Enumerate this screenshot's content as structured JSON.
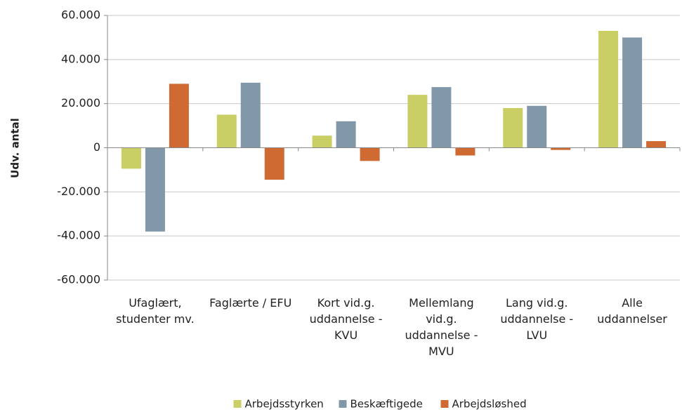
{
  "chart_data": {
    "type": "bar",
    "y_label": "Udv. antal",
    "categories": [
      "Ufaglært, studenter mv.",
      "Faglærte / EFU",
      "Kort vid.g. uddannelse - KVU",
      "Mellemlang vid.g. uddannelse - MVU",
      "Lang vid.g. uddannelse - LVU",
      "Alle uddannelser"
    ],
    "series": [
      {
        "name": "Arbejdsstyrken",
        "color": "#c9cf64",
        "values": [
          -9500,
          15000,
          5500,
          24000,
          18000,
          53000
        ]
      },
      {
        "name": "Beskæftigede",
        "color": "#8098a8",
        "values": [
          -38000,
          29500,
          12000,
          27500,
          19000,
          50000
        ]
      },
      {
        "name": "Arbejdsløshed",
        "color": "#d06a33",
        "values": [
          29000,
          -14500,
          -6000,
          -3500,
          -1000,
          3000
        ]
      }
    ],
    "ylim": [
      -60000,
      60000
    ],
    "yticks": [
      {
        "value": -60000,
        "label": "-60.000"
      },
      {
        "value": -40000,
        "label": "-40.000"
      },
      {
        "value": -20000,
        "label": "-20.000"
      },
      0,
      {
        "value": 20000,
        "label": "20.000"
      },
      {
        "value": 40000,
        "label": "40.000"
      },
      {
        "value": 60000,
        "label": "60.000"
      }
    ],
    "grid": true,
    "legend": "bottom"
  }
}
